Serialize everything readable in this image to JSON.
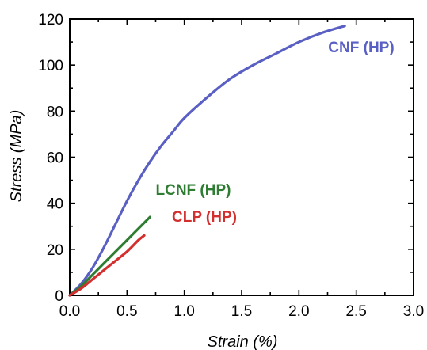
{
  "chart_data": {
    "type": "line",
    "xlabel": "Strain (%)",
    "ylabel": "Stress (MPa)",
    "xlim": [
      0.0,
      3.0
    ],
    "ylim": [
      0,
      120
    ],
    "x_ticks": [
      "0.0",
      "0.5",
      "1.0",
      "1.5",
      "2.0",
      "2.5",
      "3.0"
    ],
    "y_ticks": [
      "0",
      "20",
      "40",
      "60",
      "80",
      "100",
      "120"
    ],
    "grid": false,
    "legend": "none (series labelled directly on plot)",
    "series": [
      {
        "name": "CNF (HP)",
        "color": "#5a5fc4",
        "x": [
          0.0,
          0.1,
          0.2,
          0.3,
          0.4,
          0.5,
          0.6,
          0.7,
          0.8,
          0.9,
          1.0,
          1.2,
          1.4,
          1.6,
          1.8,
          2.0,
          2.2,
          2.4
        ],
        "y": [
          0,
          5,
          12,
          21,
          31,
          41,
          50,
          58,
          65,
          71,
          77,
          86,
          94,
          100,
          105,
          110,
          114,
          117
        ]
      },
      {
        "name": "LCNF (HP)",
        "color": "#2e7d32",
        "x": [
          0.0,
          0.1,
          0.2,
          0.3,
          0.4,
          0.5,
          0.6,
          0.7
        ],
        "y": [
          0,
          4,
          9,
          14,
          19,
          24,
          29,
          34
        ]
      },
      {
        "name": "CLP (HP)",
        "color": "#d32f2f",
        "x": [
          0.0,
          0.1,
          0.2,
          0.3,
          0.4,
          0.5,
          0.6,
          0.65
        ],
        "y": [
          0,
          3,
          7,
          11,
          15,
          19,
          24,
          26
        ]
      }
    ]
  }
}
